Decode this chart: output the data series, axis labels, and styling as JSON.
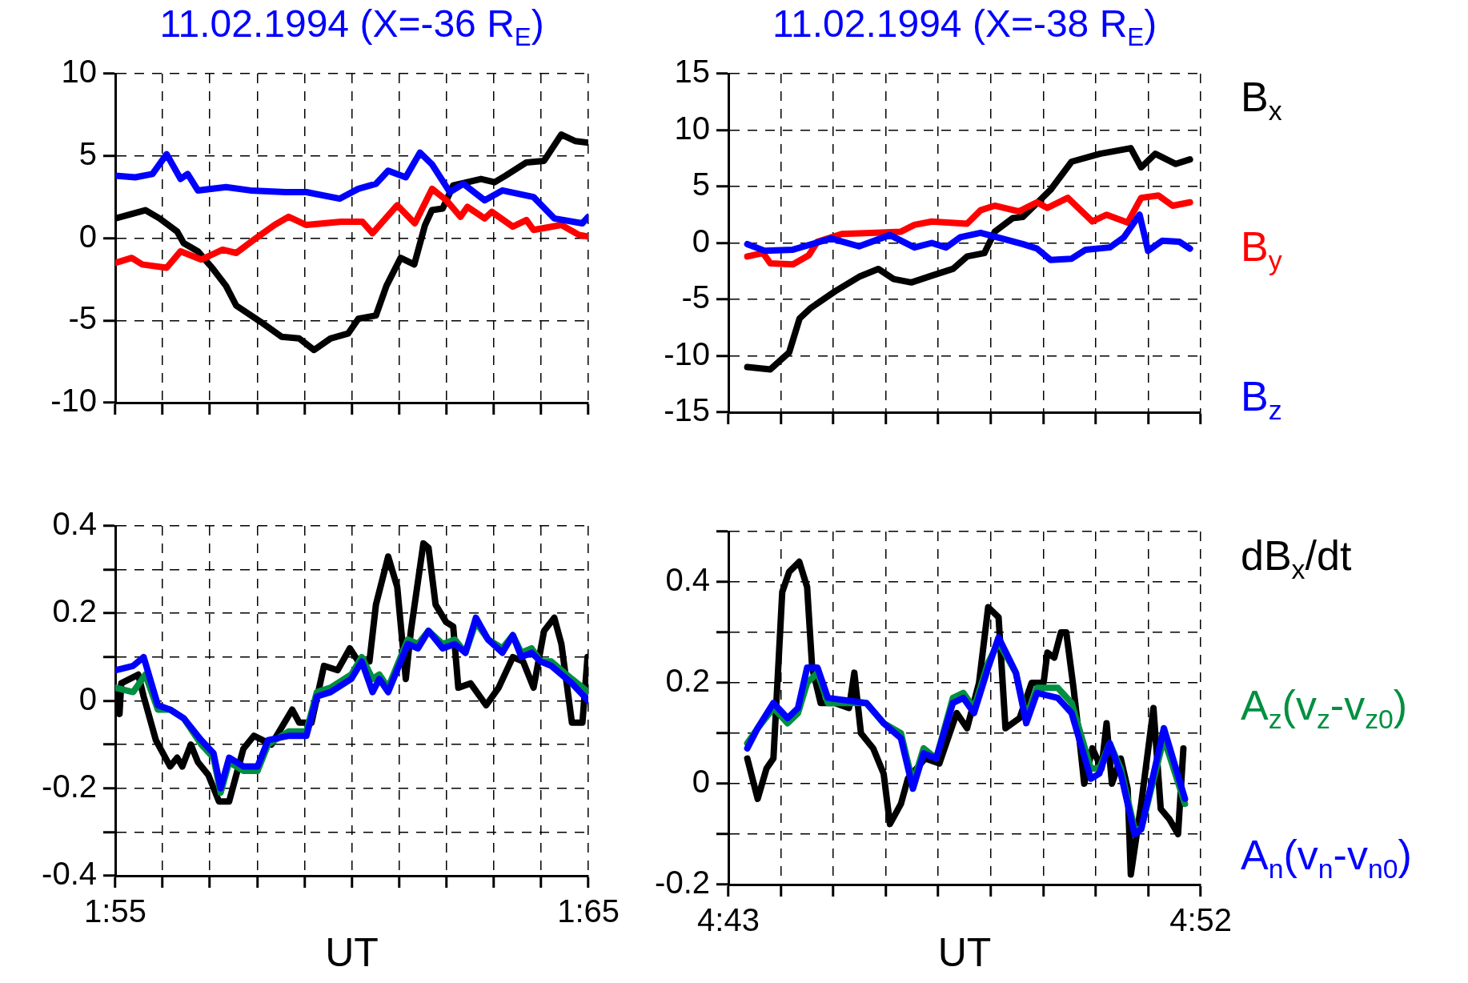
{
  "chart_data": [
    {
      "type": "line",
      "title": "11.02.1994 (X=-36 R$_{E}$)",
      "xlim": [
        1.9167,
        2.0833
      ],
      "xticks": [
        {
          "value": 1.9167,
          "label": null
        },
        {
          "value": 1.9333,
          "label": null
        },
        {
          "value": 1.95,
          "label": null
        },
        {
          "value": 1.9667,
          "label": null
        },
        {
          "value": 1.9833,
          "label": null
        },
        {
          "value": 2,
          "label": null
        },
        {
          "value": 2.0167,
          "label": null
        },
        {
          "value": 2.0333,
          "label": null
        },
        {
          "value": 2.05,
          "label": null
        },
        {
          "value": 2.0667,
          "label": null
        },
        {
          "value": 2.0833,
          "label": null
        }
      ],
      "ylim": [
        -10,
        10
      ],
      "yticks": [
        -10,
        -5,
        0,
        5,
        10
      ],
      "grid": true,
      "tick_labels": "y",
      "series": [
        {
          "color": "#000000",
          "x": [
            1.9167,
            1.9273,
            1.9323,
            1.9385,
            1.9408,
            1.9458,
            1.9508,
            1.9557,
            1.9593,
            1.968,
            1.9753,
            1.9815,
            1.9867,
            1.9925,
            1.9987,
            2.0023,
            2.0085,
            2.0122,
            2.0172,
            2.022,
            2.0258,
            2.0282,
            2.032,
            2.0357,
            2.0455,
            2.0503,
            2.0542,
            2.0615,
            2.0677,
            2.0738,
            2.0787,
            2.0833
          ],
          "values": [
            1.2,
            1.7,
            1.2,
            0.4,
            -0.3,
            -0.8,
            -1.8,
            -2.9,
            -4.1,
            -5.1,
            -6.0,
            -6.1,
            -6.8,
            -6.1,
            -5.8,
            -4.9,
            -4.7,
            -2.9,
            -1.2,
            -1.6,
            0.8,
            1.7,
            1.8,
            3.2,
            3.6,
            3.4,
            3.8,
            4.6,
            4.7,
            6.3,
            5.9,
            5.8
          ]
        },
        {
          "color": "#ff0000",
          "x": [
            1.9167,
            1.9225,
            1.9262,
            1.9348,
            1.9397,
            1.947,
            1.9545,
            1.9593,
            1.9655,
            1.9728,
            1.9778,
            1.984,
            1.9962,
            2.0037,
            2.0073,
            2.016,
            2.0222,
            2.0283,
            2.0333,
            2.0383,
            2.0407,
            2.0468,
            2.0493,
            2.0567,
            2.0615,
            2.064,
            2.0738,
            2.08,
            2.0833
          ],
          "values": [
            -1.5,
            -1.2,
            -1.6,
            -1.8,
            -0.8,
            -1.3,
            -0.7,
            -0.9,
            -0.1,
            0.8,
            1.3,
            0.8,
            1.0,
            1.0,
            0.3,
            2.0,
            0.9,
            3.0,
            2.3,
            1.3,
            1.9,
            1.2,
            1.6,
            0.7,
            1.1,
            0.5,
            0.8,
            0.2,
            0.1
          ]
        },
        {
          "color": "#0000ff",
          "x": [
            1.9167,
            1.9237,
            1.9298,
            1.9348,
            1.9397,
            1.9422,
            1.9458,
            1.9557,
            1.9643,
            1.9767,
            1.984,
            1.9957,
            2.0023,
            2.0085,
            2.0128,
            2.019,
            2.024,
            2.0282,
            2.0345,
            2.0393,
            2.0468,
            2.053,
            2.064,
            2.0713,
            2.0812,
            2.0833
          ],
          "values": [
            3.8,
            3.7,
            3.9,
            5.1,
            3.6,
            3.9,
            2.9,
            3.1,
            2.9,
            2.8,
            2.8,
            2.4,
            3.0,
            3.3,
            4.1,
            3.7,
            5.2,
            4.5,
            2.8,
            3.3,
            2.3,
            2.9,
            2.5,
            1.2,
            0.9,
            1.3
          ]
        }
      ]
    },
    {
      "type": "line",
      "title": "11.02.1994 (X=-38 R$_{E}$)",
      "xlim": [
        4.7167,
        4.8667
      ],
      "xticks": [
        {
          "value": 4.7167,
          "label": null
        },
        {
          "value": 4.7333,
          "label": null
        },
        {
          "value": 4.75,
          "label": null
        },
        {
          "value": 4.7667,
          "label": null
        },
        {
          "value": 4.7833,
          "label": null
        },
        {
          "value": 4.8,
          "label": null
        },
        {
          "value": 4.8167,
          "label": null
        },
        {
          "value": 4.8333,
          "label": null
        },
        {
          "value": 4.85,
          "label": null
        },
        {
          "value": 4.8667,
          "label": null
        }
      ],
      "ylim": [
        -15,
        15
      ],
      "yticks": [
        -15,
        -10,
        -5,
        0,
        5,
        10,
        15
      ],
      "grid": true,
      "tick_labels": "y",
      "legend": "right",
      "series": [
        {
          "name": "B$_{x}$",
          "color": "#000000",
          "x": [
            4.7227,
            4.73,
            4.736,
            4.7393,
            4.7427,
            4.7505,
            4.7582,
            4.7643,
            4.7692,
            4.7748,
            4.7813,
            4.788,
            4.7925,
            4.798,
            4.8013,
            4.807,
            4.8102,
            4.819,
            4.8257,
            4.8347,
            4.8445,
            4.8478,
            4.8523,
            4.8588,
            4.8633
          ],
          "values": [
            -11.0,
            -11.2,
            -9.7,
            -6.7,
            -5.8,
            -4.3,
            -3.0,
            -2.3,
            -3.2,
            -3.5,
            -2.9,
            -2.3,
            -1.2,
            -0.9,
            1.0,
            2.2,
            2.3,
            4.7,
            7.2,
            7.9,
            8.4,
            6.7,
            7.9,
            7.0,
            7.4
          ]
        },
        {
          "name": "B$_{y}$",
          "color": "#ff0000",
          "x": [
            4.7227,
            4.7277,
            4.73,
            4.7372,
            4.7422,
            4.745,
            4.7527,
            4.7637,
            4.7715,
            4.7758,
            4.7813,
            4.7925,
            4.7968,
            4.8013,
            4.809,
            4.8147,
            4.818,
            4.8245,
            4.8323,
            4.8368,
            4.8435,
            4.8478,
            4.8533,
            4.8578,
            4.8633
          ],
          "values": [
            -1.2,
            -0.9,
            -1.8,
            -1.9,
            -1.1,
            0.1,
            0.8,
            0.9,
            1.0,
            1.6,
            1.9,
            1.7,
            2.9,
            3.3,
            2.8,
            3.6,
            3.1,
            4.0,
            1.9,
            2.5,
            1.8,
            4.0,
            4.2,
            3.3,
            3.6
          ]
        },
        {
          "name": "B$_{z}$",
          "color": "#0000ff",
          "x": [
            4.7227,
            4.7283,
            4.7372,
            4.7493,
            4.7582,
            4.768,
            4.7758,
            4.7813,
            4.7858,
            4.7903,
            4.7968,
            4.8035,
            4.8102,
            4.8147,
            4.819,
            4.8257,
            4.8302,
            4.8378,
            4.8423,
            4.8473,
            4.85,
            4.8545,
            4.86,
            4.8633
          ],
          "values": [
            -0.1,
            -0.7,
            -0.6,
            0.4,
            -0.3,
            0.7,
            -0.4,
            0.0,
            -0.4,
            0.5,
            0.9,
            0.4,
            -0.1,
            -0.5,
            -1.5,
            -1.4,
            -0.6,
            -0.4,
            0.5,
            2.5,
            -0.7,
            0.2,
            0.1,
            -0.5
          ]
        }
      ]
    },
    {
      "type": "line",
      "xlabel": "UT",
      "xlim": [
        1.9167,
        2.0833
      ],
      "xticks": [
        {
          "value": 1.9167,
          "label": "1:55"
        },
        {
          "value": 1.9333,
          "label": null
        },
        {
          "value": 1.95,
          "label": null
        },
        {
          "value": 1.9667,
          "label": null
        },
        {
          "value": 1.9833,
          "label": null
        },
        {
          "value": 2,
          "label": null
        },
        {
          "value": 2.0167,
          "label": null
        },
        {
          "value": 2.0333,
          "label": null
        },
        {
          "value": 2.05,
          "label": null
        },
        {
          "value": 2.0667,
          "label": null
        },
        {
          "value": 2.0833,
          "label": "1:65"
        }
      ],
      "ylim": [
        -0.4,
        0.4
      ],
      "yticks": [
        -0.4,
        {
          "value": -0.3,
          "label": null
        },
        -0.2,
        {
          "value": -0.1,
          "label": null
        },
        0,
        {
          "value": 0.1,
          "label": null
        },
        0.2,
        {
          "value": 0.3,
          "label": null
        },
        0.4
      ],
      "grid": true,
      "series": [
        {
          "color": "#000000",
          "x": [
            1.9167,
            1.9182,
            1.9188,
            1.9248,
            1.9267,
            1.931,
            1.936,
            1.9385,
            1.9403,
            1.9433,
            1.9458,
            1.9495,
            1.9532,
            1.9568,
            1.9618,
            1.9655,
            1.9717,
            1.979,
            1.9815,
            1.9858,
            1.9902,
            1.995,
            1.9993,
            2.0023,
            2.0062,
            2.0085,
            2.0128,
            2.016,
            2.019,
            2.0208,
            2.0252,
            2.027,
            2.0295,
            2.0332,
            2.0357,
            2.0375,
            2.0418,
            2.0473,
            2.0517,
            2.0567,
            2.0603,
            2.064,
            2.0677,
            2.0713,
            2.0738,
            2.0775,
            2.0812,
            2.083
          ],
          "values": [
            0.02,
            -0.03,
            0.04,
            0.06,
            0.01,
            -0.09,
            -0.15,
            -0.13,
            -0.15,
            -0.1,
            -0.14,
            -0.17,
            -0.23,
            -0.23,
            -0.11,
            -0.08,
            -0.1,
            -0.02,
            -0.05,
            -0.05,
            0.08,
            0.07,
            0.12,
            0.09,
            0.09,
            0.22,
            0.33,
            0.26,
            0.05,
            0.16,
            0.36,
            0.35,
            0.22,
            0.18,
            0.17,
            0.03,
            0.04,
            -0.01,
            0.03,
            0.1,
            0.09,
            0.03,
            0.16,
            0.19,
            0.13,
            -0.05,
            -0.05,
            0.1
          ]
        },
        {
          "color": "#009040",
          "x": [
            1.9167,
            1.923,
            1.9273,
            1.9317,
            1.936,
            1.9408,
            1.947,
            1.9513,
            1.9538,
            1.9568,
            1.9618,
            1.9668,
            1.9705,
            1.9778,
            1.984,
            1.9877,
            1.9925,
            1.9998,
            2.0035,
            2.0073,
            2.0097,
            2.0128,
            2.0197,
            2.0233,
            2.027,
            2.032,
            2.0363,
            2.04,
            2.0437,
            2.048,
            2.053,
            2.0567,
            2.0597,
            2.0633,
            2.0665,
            2.0702,
            2.0775,
            2.0833
          ],
          "values": [
            0.03,
            0.02,
            0.06,
            -0.02,
            -0.02,
            -0.04,
            -0.1,
            -0.13,
            -0.21,
            -0.14,
            -0.16,
            -0.16,
            -0.1,
            -0.07,
            -0.07,
            0.02,
            0.03,
            0.06,
            0.1,
            0.05,
            0.06,
            0.03,
            0.14,
            0.13,
            0.16,
            0.13,
            0.14,
            0.11,
            0.18,
            0.14,
            0.12,
            0.15,
            0.11,
            0.12,
            0.09,
            0.09,
            0.05,
            0.02
          ]
        },
        {
          "color": "#0000ff",
          "x": [
            1.9167,
            1.923,
            1.9267,
            1.9317,
            1.936,
            1.9408,
            1.947,
            1.9513,
            1.9538,
            1.9568,
            1.9618,
            1.9668,
            1.9705,
            1.9778,
            1.984,
            1.9877,
            1.9925,
            1.9998,
            2.0035,
            2.0073,
            2.0097,
            2.0128,
            2.0197,
            2.0233,
            2.027,
            2.032,
            2.0363,
            2.04,
            2.0437,
            2.048,
            2.053,
            2.0567,
            2.0597,
            2.0633,
            2.0665,
            2.0702,
            2.0775,
            2.0833
          ],
          "values": [
            0.07,
            0.08,
            0.1,
            -0.01,
            -0.02,
            -0.04,
            -0.09,
            -0.12,
            -0.2,
            -0.13,
            -0.15,
            -0.15,
            -0.09,
            -0.08,
            -0.08,
            0.01,
            0.02,
            0.05,
            0.09,
            0.02,
            0.05,
            0.02,
            0.13,
            0.12,
            0.16,
            0.12,
            0.13,
            0.11,
            0.19,
            0.14,
            0.11,
            0.15,
            0.1,
            0.11,
            0.09,
            0.08,
            0.04,
            0.0
          ]
        }
      ]
    },
    {
      "type": "line",
      "xlabel": "UT",
      "xlim": [
        4.7167,
        4.8667
      ],
      "xticks": [
        {
          "value": 4.7167,
          "label": "4:43"
        },
        {
          "value": 4.7333,
          "label": null
        },
        {
          "value": 4.75,
          "label": null
        },
        {
          "value": 4.7667,
          "label": null
        },
        {
          "value": 4.7833,
          "label": null
        },
        {
          "value": 4.8,
          "label": null
        },
        {
          "value": 4.8167,
          "label": null
        },
        {
          "value": 4.8333,
          "label": null
        },
        {
          "value": 4.85,
          "label": null
        },
        {
          "value": 4.8667,
          "label": "4:52"
        }
      ],
      "ylim": [
        -0.2,
        0.5
      ],
      "yticks": [
        -0.2,
        {
          "value": -0.1,
          "label": null
        },
        0,
        {
          "value": 0.1,
          "label": null
        },
        0.2,
        {
          "value": 0.3,
          "label": null
        },
        0.4,
        {
          "value": 0.5,
          "label": null
        }
      ],
      "grid": true,
      "legend": "right",
      "series": [
        {
          "name": "dB$_{x}$/dt",
          "color": "#000000",
          "x": [
            4.7227,
            4.726,
            4.7288,
            4.731,
            4.7338,
            4.736,
            4.7392,
            4.7417,
            4.7433,
            4.746,
            4.7505,
            4.755,
            4.7567,
            4.7588,
            4.7627,
            4.766,
            4.768,
            4.7715,
            4.7737,
            4.7792,
            4.7837,
            4.7892,
            4.7925,
            4.7963,
            4.7992,
            4.8025,
            4.8047,
            4.8092,
            4.813,
            4.8168,
            4.818,
            4.8202,
            4.8223,
            4.824,
            4.8263,
            4.8285,
            4.8297,
            4.8323,
            4.8352,
            4.8368,
            4.8385,
            4.8413,
            4.8435,
            4.8445,
            4.8478,
            4.8517,
            4.854,
            4.8567,
            4.8595,
            4.8612
          ],
          "values": [
            0.05,
            -0.03,
            0.03,
            0.05,
            0.38,
            0.42,
            0.44,
            0.39,
            0.23,
            0.16,
            0.16,
            0.15,
            0.22,
            0.1,
            0.07,
            0.02,
            -0.08,
            -0.04,
            0.01,
            0.05,
            0.04,
            0.14,
            0.11,
            0.2,
            0.35,
            0.33,
            0.11,
            0.13,
            0.2,
            0.2,
            0.26,
            0.25,
            0.3,
            0.3,
            0.19,
            0.07,
            0.0,
            0.07,
            0.03,
            0.12,
            0.0,
            0.05,
            -0.01,
            -0.18,
            -0.04,
            0.15,
            -0.05,
            -0.07,
            -0.1,
            0.07
          ]
        },
        {
          "name": "A$_{z}$(v$_{z}$-v$_{z0}$)",
          "color": "#009040",
          "x": [
            4.7227,
            4.726,
            4.731,
            4.7355,
            4.7388,
            4.7417,
            4.745,
            4.7483,
            4.7605,
            4.766,
            4.7715,
            4.7753,
            4.7787,
            4.7827,
            4.788,
            4.7913,
            4.7947,
            4.7992,
            4.8025,
            4.808,
            4.8113,
            4.8147,
            4.8213,
            4.8257,
            4.8318,
            4.8345,
            4.8378,
            4.8413,
            4.8457,
            4.8478,
            4.855,
            4.8617
          ],
          "values": [
            0.08,
            0.11,
            0.15,
            0.12,
            0.14,
            0.2,
            0.22,
            0.16,
            0.16,
            0.12,
            0.1,
            0.0,
            0.07,
            0.05,
            0.17,
            0.18,
            0.15,
            0.24,
            0.28,
            0.22,
            0.13,
            0.19,
            0.19,
            0.16,
            0.03,
            0.03,
            0.08,
            0.03,
            -0.09,
            -0.09,
            0.09,
            -0.04
          ]
        },
        {
          "name": "A$_{n}$(v$_{n}$-v$_{n0}$)",
          "color": "#0000ff",
          "x": [
            4.7227,
            4.726,
            4.731,
            4.7355,
            4.7388,
            4.7417,
            4.745,
            4.7483,
            4.7605,
            4.766,
            4.7715,
            4.7753,
            4.7787,
            4.7827,
            4.788,
            4.7913,
            4.7947,
            4.7992,
            4.8025,
            4.808,
            4.8113,
            4.8147,
            4.8213,
            4.8257,
            4.8318,
            4.8345,
            4.8378,
            4.8413,
            4.8457,
            4.8478,
            4.855,
            4.8617
          ],
          "values": [
            0.07,
            0.11,
            0.16,
            0.13,
            0.15,
            0.23,
            0.23,
            0.17,
            0.16,
            0.12,
            0.09,
            -0.01,
            0.06,
            0.05,
            0.16,
            0.17,
            0.14,
            0.23,
            0.29,
            0.22,
            0.12,
            0.18,
            0.17,
            0.14,
            0.01,
            0.02,
            0.08,
            0.02,
            -0.1,
            -0.09,
            0.11,
            -0.03
          ]
        }
      ]
    }
  ]
}
